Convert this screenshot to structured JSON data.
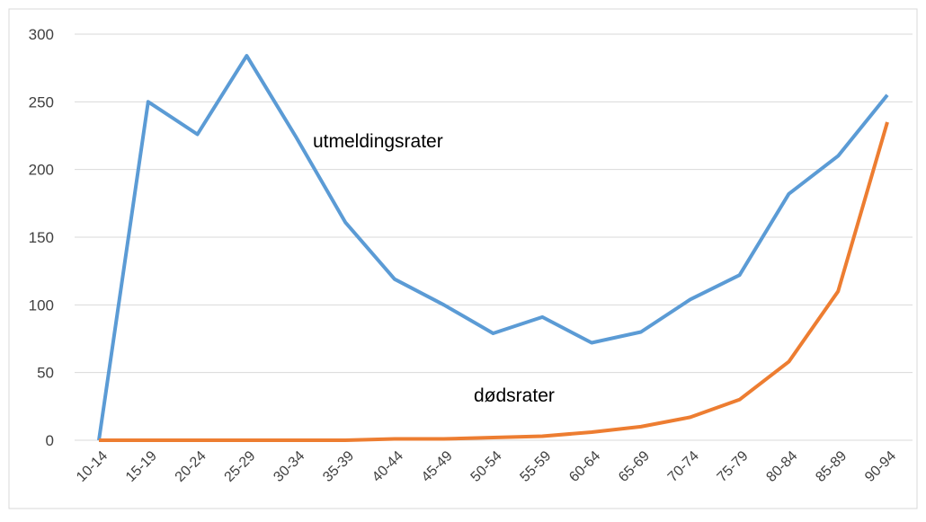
{
  "chart_data": {
    "type": "line",
    "categories": [
      "10-14",
      "15-19",
      "20-24",
      "25-29",
      "30-34",
      "35-39",
      "40-44",
      "45-49",
      "50-54",
      "55-59",
      "60-64",
      "65-69",
      "70-74",
      "75-79",
      "80-84",
      "85-89",
      "90-94"
    ],
    "series": [
      {
        "name": "utmeldingsrater",
        "color": "#5b9bd5",
        "values": [
          0,
          250,
          226,
          284,
          224,
          161,
          119,
          100,
          79,
          91,
          72,
          80,
          104,
          122,
          182,
          210,
          255
        ]
      },
      {
        "name": "dødsrater",
        "color": "#ed7d31",
        "values": [
          0,
          0,
          0,
          0,
          0,
          0,
          1,
          1,
          2,
          3,
          6,
          10,
          17,
          30,
          58,
          110,
          235
        ]
      }
    ],
    "ylim": [
      0,
      300
    ],
    "yticks": [
      0,
      50,
      100,
      150,
      200,
      250,
      300
    ],
    "grid": true
  }
}
